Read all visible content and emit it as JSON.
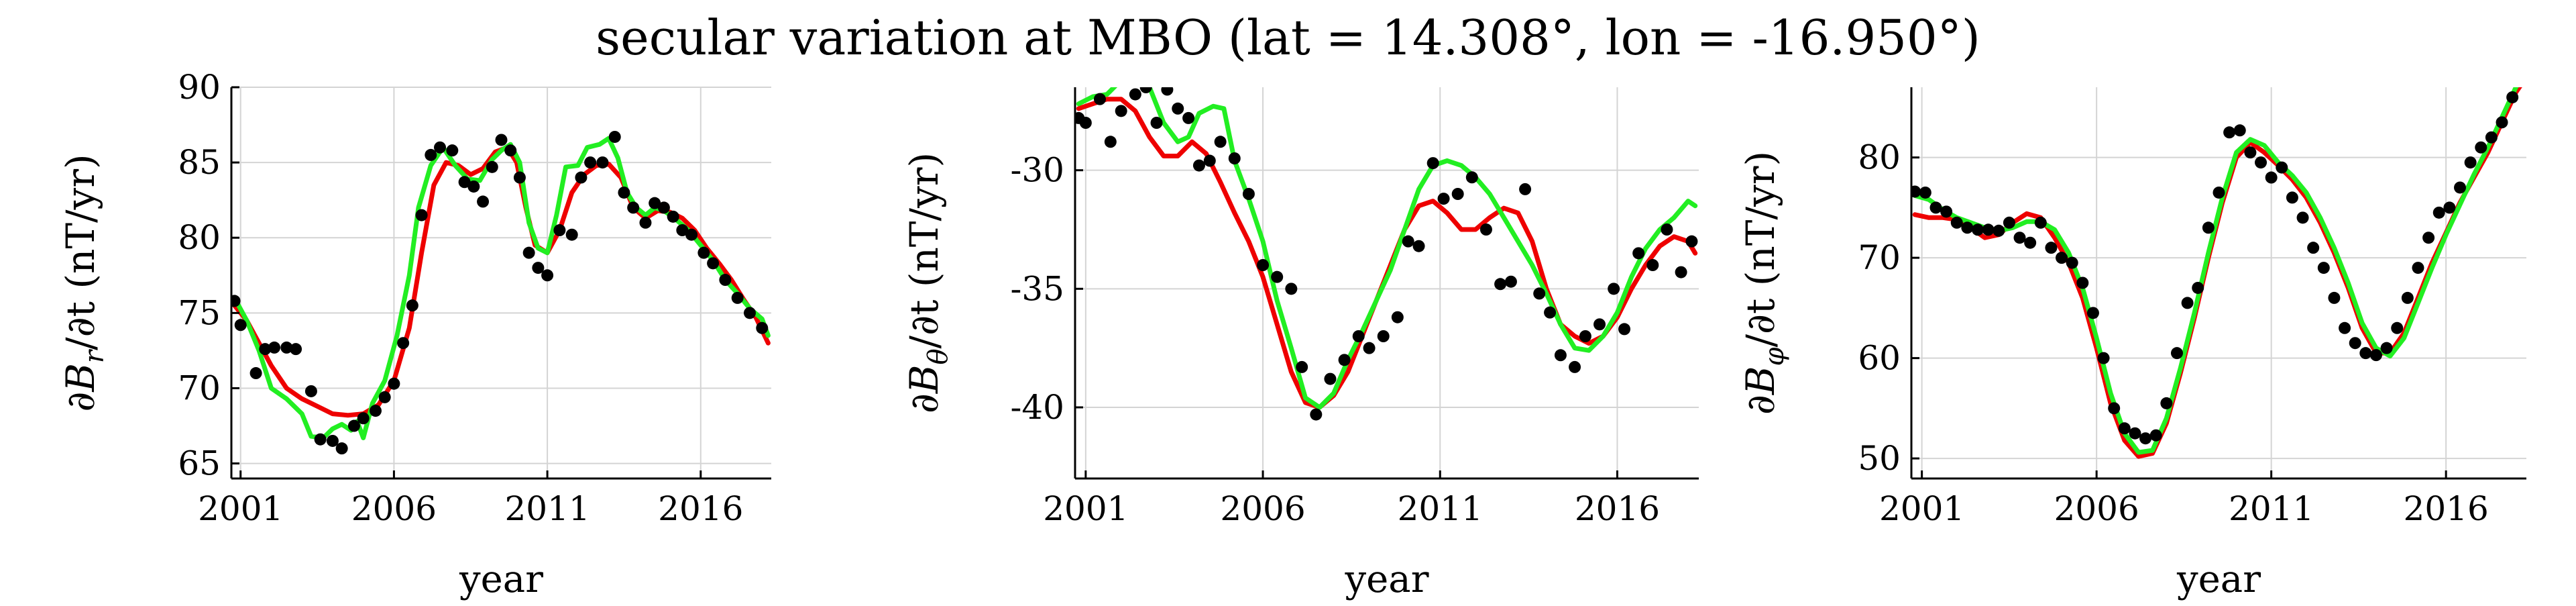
{
  "title": "secular variation at MBO (lat = 14.308°, lon = -16.950°)",
  "chart_data": [
    {
      "type": "scatter",
      "ylabel": "∂B_r/∂t (nT/yr)",
      "ylabel_parts": {
        "pre": "∂B",
        "sub": "r",
        "post": "/∂t (nT/yr)"
      },
      "xlabel": "year",
      "xlim": [
        2000.7,
        2018.3
      ],
      "ylim": [
        64,
        90
      ],
      "xticks": [
        2001,
        2006,
        2011,
        2016
      ],
      "yticks": [
        65,
        70,
        75,
        80,
        85,
        90
      ],
      "grid": true,
      "series": [
        {
          "role": "observations",
          "color": "#000000",
          "x": [
            2000.8,
            2001.0,
            2001.5,
            2001.8,
            2002.1,
            2002.5,
            2002.8,
            2003.3,
            2003.6,
            2004.0,
            2004.3,
            2004.7,
            2005.0,
            2005.4,
            2005.7,
            2006.0,
            2006.3,
            2006.6,
            2006.9,
            2007.2,
            2007.5,
            2007.9,
            2008.3,
            2008.6,
            2008.9,
            2009.2,
            2009.5,
            2009.8,
            2010.1,
            2010.4,
            2010.7,
            2011.0,
            2011.4,
            2011.8,
            2012.1,
            2012.4,
            2012.8,
            2013.2,
            2013.5,
            2013.8,
            2014.2,
            2014.5,
            2014.8,
            2015.1,
            2015.4,
            2015.7,
            2016.1,
            2016.4,
            2016.8,
            2017.2,
            2017.6,
            2018.0
          ],
          "y": [
            75.8,
            74.2,
            71.0,
            72.6,
            72.7,
            72.7,
            72.6,
            69.8,
            66.6,
            66.5,
            66.0,
            67.5,
            68.0,
            68.5,
            69.4,
            70.3,
            73.0,
            75.5,
            81.5,
            85.5,
            86.0,
            85.8,
            83.7,
            83.4,
            82.4,
            84.7,
            86.5,
            85.8,
            84.0,
            79.0,
            78.0,
            77.5,
            80.5,
            80.2,
            84.0,
            85.0,
            85.0,
            86.7,
            83.0,
            82.0,
            81.0,
            82.3,
            82.0,
            81.4,
            80.5,
            80.2,
            79.0,
            78.3,
            77.2,
            76.0,
            75.0,
            74.0
          ]
        },
        {
          "role": "model-red",
          "color": "#ee0000",
          "x": [
            2000.8,
            2001.2,
            2001.6,
            2002.0,
            2002.5,
            2003.0,
            2003.5,
            2004.0,
            2004.5,
            2005.0,
            2005.5,
            2006.0,
            2006.5,
            2006.9,
            2007.3,
            2007.7,
            2008.1,
            2008.5,
            2008.9,
            2009.3,
            2009.7,
            2010.0,
            2010.3,
            2010.6,
            2011.0,
            2011.4,
            2011.8,
            2012.2,
            2012.6,
            2013.0,
            2013.4,
            2013.8,
            2014.2,
            2014.6,
            2015.0,
            2015.4,
            2015.8,
            2016.2,
            2016.6,
            2017.0,
            2017.4,
            2017.8,
            2018.2
          ],
          "y": [
            75.5,
            74.5,
            73.0,
            71.5,
            70.0,
            69.3,
            68.8,
            68.3,
            68.2,
            68.3,
            68.9,
            70.5,
            74.0,
            79.0,
            83.5,
            85.0,
            84.8,
            84.2,
            84.6,
            85.7,
            86.0,
            85.0,
            82.0,
            79.5,
            79.0,
            80.5,
            83.0,
            84.2,
            84.8,
            84.9,
            84.0,
            82.0,
            81.3,
            81.8,
            81.7,
            81.3,
            80.5,
            79.3,
            78.3,
            77.2,
            75.9,
            74.7,
            73.0
          ]
        },
        {
          "role": "model-green",
          "color": "#22ee22",
          "x": [
            2000.8,
            2001.2,
            2001.6,
            2002.0,
            2002.5,
            2003.0,
            2003.3,
            2003.7,
            2004.0,
            2004.3,
            2004.6,
            2004.8,
            2005.0,
            2005.3,
            2005.7,
            2006.1,
            2006.5,
            2006.8,
            2007.2,
            2007.6,
            2008.0,
            2008.4,
            2008.8,
            2009.2,
            2009.5,
            2009.8,
            2010.1,
            2010.4,
            2010.7,
            2011.0,
            2011.3,
            2011.6,
            2012.0,
            2012.3,
            2012.7,
            2013.0,
            2013.3,
            2013.6,
            2013.9,
            2014.2,
            2014.5,
            2014.8,
            2015.2,
            2015.6,
            2016.0,
            2016.4,
            2016.8,
            2017.2,
            2017.6,
            2018.0,
            2018.2
          ],
          "y": [
            76.0,
            74.5,
            72.5,
            70.0,
            69.3,
            68.3,
            66.8,
            66.7,
            67.3,
            67.6,
            67.2,
            67.8,
            66.7,
            69.0,
            70.5,
            73.5,
            77.5,
            82.0,
            84.8,
            86.0,
            84.8,
            83.9,
            83.8,
            85.2,
            85.8,
            86.2,
            85.0,
            81.0,
            79.3,
            79.0,
            81.5,
            84.7,
            84.8,
            86.0,
            86.2,
            86.6,
            85.3,
            83.0,
            82.0,
            81.5,
            82.0,
            81.8,
            81.2,
            80.5,
            79.5,
            78.5,
            77.2,
            76.3,
            75.3,
            74.6,
            73.5
          ]
        }
      ]
    },
    {
      "type": "scatter",
      "ylabel": "∂B_θ/∂t (nT/yr)",
      "ylabel_parts": {
        "pre": "∂B",
        "sub": "θ",
        "post": "/∂t (nT/yr)"
      },
      "xlabel": "year",
      "xlim": [
        2000.7,
        2018.3
      ],
      "ylim": [
        -43,
        -26.5
      ],
      "xticks": [
        2001,
        2006,
        2011,
        2016
      ],
      "yticks": [
        -40,
        -35,
        -30
      ],
      "grid": true,
      "series": [
        {
          "role": "observations",
          "color": "#000000",
          "x": [
            2000.8,
            2001.0,
            2001.4,
            2001.7,
            2002.0,
            2002.4,
            2002.7,
            2003.0,
            2003.3,
            2003.6,
            2003.9,
            2004.2,
            2004.5,
            2004.8,
            2005.2,
            2005.6,
            2006.0,
            2006.4,
            2006.8,
            2007.1,
            2007.5,
            2007.9,
            2008.3,
            2008.7,
            2009.0,
            2009.4,
            2009.8,
            2010.1,
            2010.4,
            2010.8,
            2011.1,
            2011.5,
            2011.9,
            2012.3,
            2012.7,
            2013.0,
            2013.4,
            2013.8,
            2014.1,
            2014.4,
            2014.8,
            2015.1,
            2015.5,
            2015.9,
            2016.2,
            2016.6,
            2017.0,
            2017.4,
            2017.8,
            2018.1
          ],
          "y": [
            -27.8,
            -28.0,
            -27.0,
            -28.8,
            -27.5,
            -26.8,
            -26.5,
            -28.0,
            -26.6,
            -27.4,
            -27.8,
            -29.8,
            -29.6,
            -28.8,
            -29.5,
            -31.0,
            -34.0,
            -34.5,
            -35.0,
            -38.3,
            -40.3,
            -38.8,
            -38.0,
            -37.0,
            -37.5,
            -37.0,
            -36.2,
            -33.0,
            -33.2,
            -29.7,
            -31.2,
            -31.0,
            -30.3,
            -32.5,
            -34.8,
            -34.7,
            -30.8,
            -35.2,
            -36.0,
            -37.8,
            -38.3,
            -37.0,
            -36.5,
            -35.0,
            -36.7,
            -33.5,
            -34.0,
            -32.5,
            -34.3,
            -33.0
          ]
        },
        {
          "role": "model-red",
          "color": "#ee0000",
          "x": [
            2000.8,
            2001.2,
            2001.6,
            2002.0,
            2002.4,
            2002.8,
            2003.2,
            2003.6,
            2004.0,
            2004.4,
            2004.8,
            2005.2,
            2005.6,
            2006.0,
            2006.4,
            2006.8,
            2007.2,
            2007.6,
            2008.0,
            2008.4,
            2008.8,
            2009.2,
            2009.6,
            2010.0,
            2010.4,
            2010.8,
            2011.2,
            2011.6,
            2012.0,
            2012.4,
            2012.8,
            2013.2,
            2013.6,
            2014.0,
            2014.4,
            2014.8,
            2015.2,
            2015.6,
            2016.0,
            2016.4,
            2016.8,
            2017.2,
            2017.6,
            2018.0,
            2018.2
          ],
          "y": [
            -27.4,
            -27.2,
            -27.0,
            -27.0,
            -27.5,
            -28.6,
            -29.4,
            -29.4,
            -28.8,
            -29.3,
            -30.5,
            -31.8,
            -33.0,
            -34.5,
            -36.5,
            -38.5,
            -39.8,
            -40.0,
            -39.5,
            -38.5,
            -37.0,
            -35.5,
            -34.0,
            -32.5,
            -31.5,
            -31.3,
            -31.8,
            -32.5,
            -32.5,
            -32.0,
            -31.6,
            -31.8,
            -33.0,
            -35.0,
            -36.5,
            -37.0,
            -37.3,
            -37.0,
            -36.2,
            -35.0,
            -34.0,
            -33.2,
            -32.8,
            -33.0,
            -33.5
          ]
        },
        {
          "role": "model-green",
          "color": "#22ee22",
          "x": [
            2000.8,
            2001.2,
            2001.6,
            2002.0,
            2002.4,
            2002.8,
            2003.2,
            2003.6,
            2003.9,
            2004.2,
            2004.6,
            2004.9,
            2005.2,
            2005.6,
            2006.0,
            2006.4,
            2006.8,
            2007.2,
            2007.6,
            2008.0,
            2008.4,
            2008.8,
            2009.2,
            2009.6,
            2010.0,
            2010.4,
            2010.8,
            2011.2,
            2011.6,
            2012.0,
            2012.4,
            2012.8,
            2013.2,
            2013.6,
            2014.0,
            2014.4,
            2014.8,
            2015.2,
            2015.6,
            2016.0,
            2016.4,
            2016.8,
            2017.2,
            2017.6,
            2018.0,
            2018.2
          ],
          "y": [
            -27.2,
            -26.9,
            -26.8,
            -26.2,
            -26.0,
            -26.5,
            -28.0,
            -28.8,
            -28.6,
            -27.6,
            -27.3,
            -27.4,
            -29.6,
            -31.2,
            -33.0,
            -35.5,
            -37.5,
            -39.6,
            -40.0,
            -39.4,
            -38.0,
            -36.8,
            -35.5,
            -34.2,
            -32.5,
            -30.8,
            -29.8,
            -29.6,
            -29.8,
            -30.3,
            -31.0,
            -32.0,
            -33.0,
            -34.0,
            -35.2,
            -36.5,
            -37.5,
            -37.6,
            -37.0,
            -36.0,
            -34.5,
            -33.3,
            -32.5,
            -32.0,
            -31.3,
            -31.5
          ]
        }
      ]
    },
    {
      "type": "scatter",
      "ylabel": "∂B_φ/∂t (nT/yr)",
      "ylabel_parts": {
        "pre": "∂B",
        "sub": "φ",
        "post": "/∂t (nT/yr)"
      },
      "xlabel": "year",
      "xlim": [
        2000.7,
        2018.3
      ],
      "ylim": [
        48,
        87
      ],
      "xticks": [
        2001,
        2006,
        2011,
        2016
      ],
      "yticks": [
        50,
        60,
        70,
        80
      ],
      "grid": true,
      "series": [
        {
          "role": "observations",
          "color": "#000000",
          "x": [
            2000.8,
            2001.1,
            2001.4,
            2001.7,
            2002.0,
            2002.3,
            2002.6,
            2002.9,
            2003.2,
            2003.5,
            2003.8,
            2004.1,
            2004.4,
            2004.7,
            2005.0,
            2005.3,
            2005.6,
            2005.9,
            2006.2,
            2006.5,
            2006.8,
            2007.1,
            2007.4,
            2007.7,
            2008.0,
            2008.3,
            2008.6,
            2008.9,
            2009.2,
            2009.5,
            2009.8,
            2010.1,
            2010.4,
            2010.7,
            2011.0,
            2011.3,
            2011.6,
            2011.9,
            2012.2,
            2012.5,
            2012.8,
            2013.1,
            2013.4,
            2013.7,
            2014.0,
            2014.3,
            2014.6,
            2014.9,
            2015.2,
            2015.5,
            2015.8,
            2016.1,
            2016.4,
            2016.7,
            2017.0,
            2017.3,
            2017.6,
            2017.9
          ],
          "y": [
            76.6,
            76.5,
            75.0,
            74.6,
            73.5,
            73.0,
            72.8,
            72.8,
            72.7,
            73.5,
            72.0,
            71.5,
            73.5,
            71.0,
            70.0,
            69.5,
            67.5,
            64.5,
            60.0,
            55.0,
            53.0,
            52.5,
            52.0,
            52.3,
            55.5,
            60.5,
            65.5,
            67.0,
            73.0,
            76.5,
            82.5,
            82.7,
            80.5,
            79.5,
            78.0,
            79.0,
            76.0,
            74.0,
            71.0,
            69.0,
            66.0,
            63.0,
            61.5,
            60.5,
            60.3,
            61.0,
            63.0,
            66.0,
            69.0,
            72.0,
            74.5,
            75.0,
            77.0,
            79.5,
            81.0,
            82.0,
            83.5,
            86.0
          ]
        },
        {
          "role": "model-red",
          "color": "#ee0000",
          "x": [
            2000.8,
            2001.2,
            2001.6,
            2002.0,
            2002.4,
            2002.8,
            2003.2,
            2003.6,
            2004.0,
            2004.4,
            2004.8,
            2005.2,
            2005.6,
            2006.0,
            2006.4,
            2006.8,
            2007.2,
            2007.6,
            2008.0,
            2008.4,
            2008.8,
            2009.2,
            2009.6,
            2010.0,
            2010.4,
            2010.8,
            2011.2,
            2011.6,
            2012.0,
            2012.4,
            2012.8,
            2013.2,
            2013.6,
            2014.0,
            2014.4,
            2014.8,
            2015.2,
            2015.6,
            2016.0,
            2016.4,
            2016.8,
            2017.2,
            2017.6,
            2018.0,
            2018.2
          ],
          "y": [
            74.3,
            74.0,
            74.0,
            73.8,
            73.0,
            72.0,
            72.3,
            73.5,
            74.4,
            74.0,
            72.0,
            69.5,
            66.0,
            61.0,
            55.5,
            51.8,
            50.2,
            50.5,
            53.5,
            58.5,
            64.0,
            70.0,
            75.5,
            80.0,
            81.5,
            80.5,
            79.2,
            77.8,
            76.0,
            73.5,
            70.5,
            67.0,
            63.0,
            60.5,
            60.5,
            62.5,
            66.0,
            69.5,
            72.5,
            75.5,
            78.0,
            80.5,
            83.5,
            86.5,
            87.5
          ]
        },
        {
          "role": "model-green",
          "color": "#22ee22",
          "x": [
            2000.8,
            2001.2,
            2001.6,
            2002.0,
            2002.4,
            2002.8,
            2003.2,
            2003.6,
            2004.0,
            2004.4,
            2004.8,
            2005.2,
            2005.6,
            2006.0,
            2006.4,
            2006.8,
            2007.2,
            2007.6,
            2008.0,
            2008.4,
            2008.8,
            2009.2,
            2009.6,
            2010.0,
            2010.4,
            2010.8,
            2011.2,
            2011.6,
            2012.0,
            2012.4,
            2012.8,
            2013.2,
            2013.6,
            2014.0,
            2014.4,
            2014.8,
            2015.2,
            2015.6,
            2016.0,
            2016.4,
            2016.8,
            2017.2,
            2017.6,
            2018.0,
            2018.2
          ],
          "y": [
            76.2,
            75.8,
            74.8,
            74.0,
            73.5,
            73.0,
            72.7,
            73.0,
            73.6,
            73.6,
            72.8,
            70.5,
            67.0,
            62.0,
            56.5,
            52.5,
            50.6,
            50.8,
            54.0,
            59.0,
            64.5,
            70.5,
            76.0,
            80.5,
            81.8,
            81.2,
            79.5,
            78.2,
            76.5,
            74.0,
            71.0,
            67.5,
            63.5,
            61.0,
            60.2,
            62.0,
            65.5,
            69.0,
            72.3,
            75.3,
            78.3,
            81.0,
            84.0,
            87.0,
            88.0
          ]
        }
      ]
    }
  ]
}
